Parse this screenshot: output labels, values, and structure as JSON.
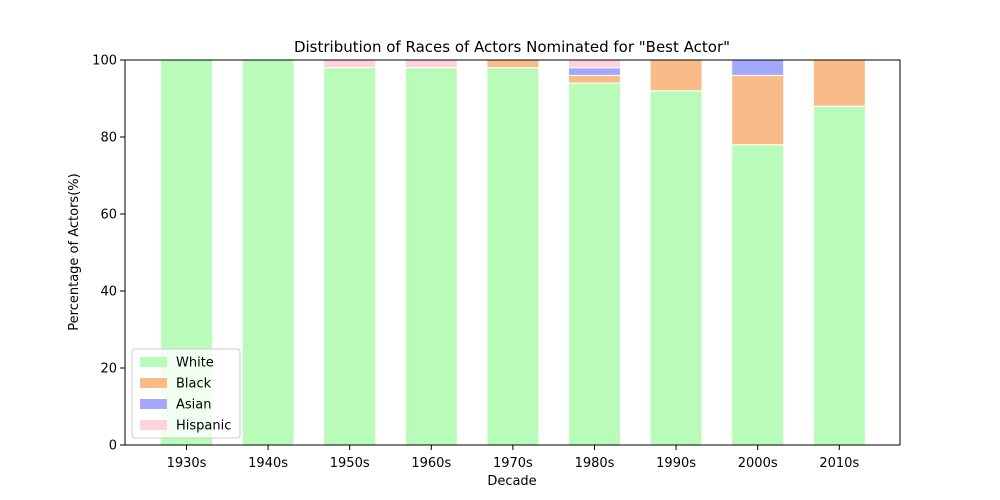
{
  "chart_data": {
    "type": "bar",
    "stacked": true,
    "title": "Distribution of Races of Actors Nominated for \"Best Actor\"",
    "xlabel": "Decade",
    "ylabel": "Percentage of Actors(%)",
    "ylim": [
      0,
      100
    ],
    "yticks": [
      0,
      20,
      40,
      60,
      80,
      100
    ],
    "grid": false,
    "legend_position": "lower-left",
    "categories": [
      "1930s",
      "1940s",
      "1950s",
      "1960s",
      "1970s",
      "1980s",
      "1990s",
      "2000s",
      "2010s"
    ],
    "series": [
      {
        "name": "White",
        "color": "#b9fcb9",
        "values": [
          100,
          100,
          98,
          98,
          98,
          94,
          92,
          78,
          88
        ]
      },
      {
        "name": "Black",
        "color": "#f9bb87",
        "values": [
          0,
          0,
          0,
          0,
          2,
          2,
          8,
          18,
          12
        ]
      },
      {
        "name": "Asian",
        "color": "#a3a8fb",
        "values": [
          0,
          0,
          0,
          0,
          0,
          2,
          0,
          4,
          0
        ]
      },
      {
        "name": "Hispanic",
        "color": "#fdd3de",
        "values": [
          0,
          0,
          2,
          2,
          0,
          2,
          0,
          0,
          0
        ]
      }
    ]
  }
}
